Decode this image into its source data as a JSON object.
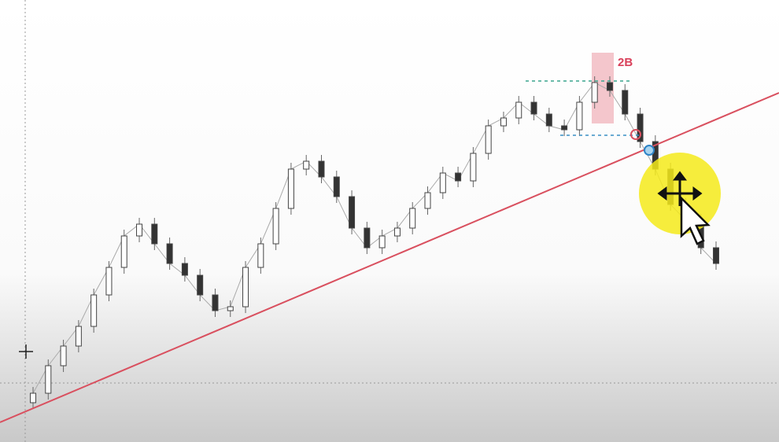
{
  "chart_data": {
    "type": "candlestick",
    "annotation": "2B",
    "ylim": [
      0,
      562
    ],
    "up_color": "#ffffff",
    "down_color": "#333333",
    "outline_color": "#444444",
    "open": [
      50,
      62,
      97,
      122,
      147,
      187,
      222,
      262,
      277,
      252,
      227,
      212,
      187,
      167,
      172,
      222,
      252,
      297,
      347,
      357,
      337,
      312,
      272,
      247,
      262,
      272,
      297,
      317,
      342,
      332,
      367,
      402,
      412,
      432,
      417,
      402,
      397,
      432,
      457,
      447,
      417,
      382,
      347,
      302,
      282,
      247
    ],
    "high": [
      70,
      105,
      130,
      155,
      195,
      230,
      270,
      285,
      285,
      260,
      235,
      220,
      195,
      180,
      230,
      260,
      305,
      355,
      365,
      365,
      345,
      320,
      280,
      270,
      280,
      305,
      325,
      350,
      350,
      375,
      410,
      420,
      440,
      440,
      425,
      410,
      440,
      465,
      465,
      455,
      425,
      390,
      355,
      310,
      290,
      255
    ],
    "low": [
      42,
      54,
      89,
      114,
      139,
      179,
      214,
      254,
      244,
      219,
      204,
      179,
      159,
      159,
      164,
      214,
      244,
      289,
      339,
      329,
      304,
      264,
      239,
      239,
      254,
      264,
      289,
      309,
      324,
      324,
      359,
      394,
      404,
      409,
      394,
      389,
      389,
      424,
      439,
      409,
      374,
      339,
      294,
      274,
      239,
      219
    ],
    "close": [
      62,
      97,
      122,
      147,
      187,
      222,
      262,
      277,
      252,
      227,
      212,
      187,
      167,
      172,
      222,
      252,
      297,
      347,
      357,
      337,
      312,
      272,
      247,
      262,
      272,
      297,
      317,
      342,
      332,
      367,
      402,
      412,
      432,
      417,
      402,
      397,
      432,
      457,
      447,
      417,
      382,
      347,
      302,
      282,
      247,
      227
    ]
  }
}
